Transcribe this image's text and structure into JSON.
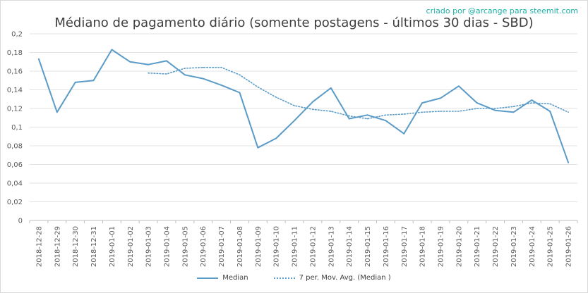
{
  "credit": "criado por @arcange para steemit.com",
  "chart_data": {
    "type": "line",
    "title": "Médiano de pagamento diário (somente postagens - últimos 30 dias - SBD)",
    "xlabel": "",
    "ylabel": "",
    "ylim": [
      0,
      0.2
    ],
    "yticks": [
      "0",
      "0,02",
      "0,04",
      "0,06",
      "0,08",
      "0,1",
      "0,12",
      "0,14",
      "0,16",
      "0,18",
      "0,2"
    ],
    "grid": true,
    "legend_position": "bottom",
    "categories": [
      "2018-12-28",
      "2018-12-29",
      "2018-12-30",
      "2018-12-31",
      "2019-01-01",
      "2019-01-02",
      "2019-01-03",
      "2019-01-04",
      "2019-01-05",
      "2019-01-06",
      "2019-01-07",
      "2019-01-08",
      "2019-01-09",
      "2019-01-10",
      "2019-01-11",
      "2019-01-12",
      "2019-01-13",
      "2019-01-14",
      "2019-01-15",
      "2019-01-16",
      "2019-01-17",
      "2019-01-18",
      "2019-01-19",
      "2019-01-20",
      "2019-01-21",
      "2019-01-22",
      "2019-01-23",
      "2019-01-24",
      "2019-01-25",
      "2019-01-26"
    ],
    "series": [
      {
        "name": "Median",
        "style": "solid",
        "color": "#5b9bc7",
        "values": [
          0.173,
          0.116,
          0.148,
          0.15,
          0.183,
          0.17,
          0.167,
          0.171,
          0.156,
          0.152,
          0.145,
          0.137,
          0.078,
          0.088,
          0.107,
          0.127,
          0.142,
          0.109,
          0.113,
          0.107,
          0.093,
          0.126,
          0.131,
          0.144,
          0.126,
          0.118,
          0.116,
          0.129,
          0.117,
          0.062
        ]
      },
      {
        "name": "7 per. Mov. Avg. (Median )",
        "style": "dotted",
        "color": "#5b9bc7",
        "values": [
          null,
          null,
          null,
          null,
          null,
          null,
          0.158,
          0.157,
          0.163,
          0.164,
          0.164,
          0.156,
          0.143,
          0.132,
          0.123,
          0.119,
          0.117,
          0.112,
          0.109,
          0.113,
          0.114,
          0.116,
          0.117,
          0.117,
          0.12,
          0.12,
          0.122,
          0.126,
          0.125,
          0.116
        ]
      }
    ]
  }
}
